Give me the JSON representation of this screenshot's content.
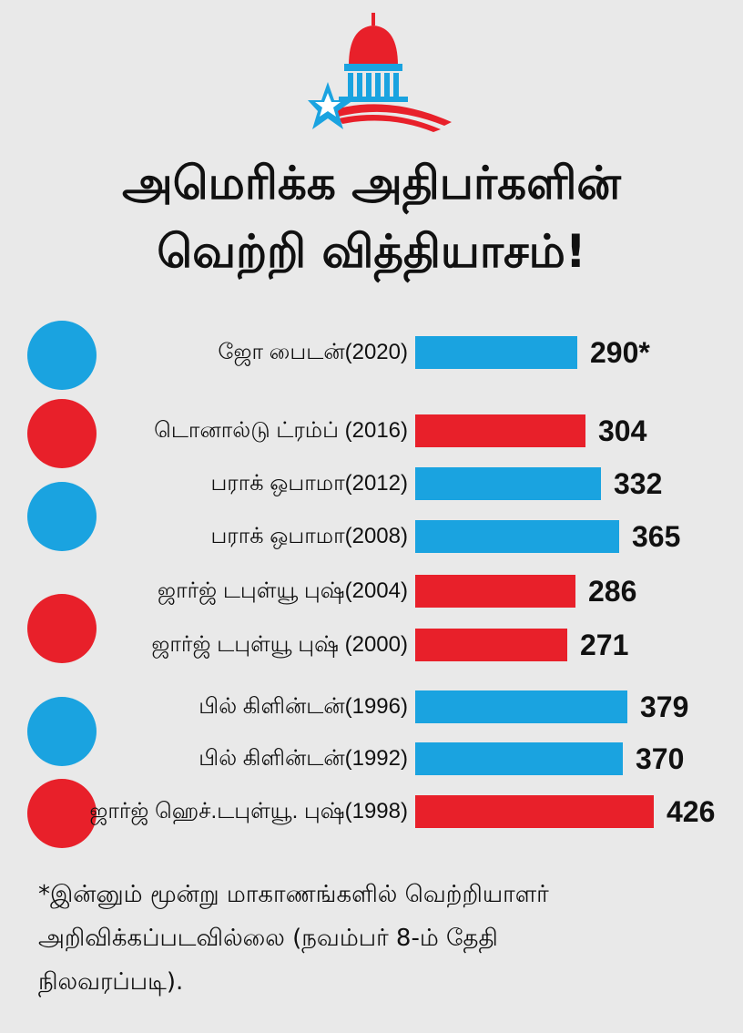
{
  "title_line1": "அமெரிக்க அதிபர்களின்",
  "title_line2": "வெற்றி வித்தியாசம்!",
  "colors": {
    "democrat": "#1aa3e0",
    "republican": "#e8202a"
  },
  "chart_data": {
    "type": "bar",
    "orientation": "horizontal",
    "categories": [
      "ஜோ பைடன்(2020)",
      "டொனால்டு ட்ரம்ப் (2016)",
      "பராக் ஒபாமா(2012)",
      "பராக் ஒபாமா(2008)",
      "ஜார்ஜ் டபுள்யூ புஷ்(2004)",
      "ஜார்ஜ் டபுள்யூ புஷ் (2000)",
      "பில் கிளின்டன்(1996)",
      "பில் கிளின்டன்(1992)",
      "ஜார்ஜ் ஹெச்.டபுள்யூ. புஷ்(1998)"
    ],
    "values": [
      290,
      304,
      332,
      365,
      286,
      271,
      379,
      370,
      426
    ],
    "value_labels": [
      "290*",
      "304",
      "332",
      "365",
      "286",
      "271",
      "379",
      "370",
      "426"
    ],
    "party": [
      "democrat",
      "republican",
      "democrat",
      "democrat",
      "republican",
      "republican",
      "democrat",
      "democrat",
      "republican"
    ],
    "xlim": [
      0,
      426
    ]
  },
  "party_markers": [
    "democrat",
    "republican",
    "democrat",
    "republican",
    "democrat",
    "republican"
  ],
  "footnote": {
    "line1": "*இன்னும் மூன்று மாகாணங்களில் வெற்றியாளர்",
    "line2": "அறிவிக்கப்படவில்லை (நவம்பர் 8-ம் தேதி",
    "line3": "நிலவரப்படி)."
  }
}
